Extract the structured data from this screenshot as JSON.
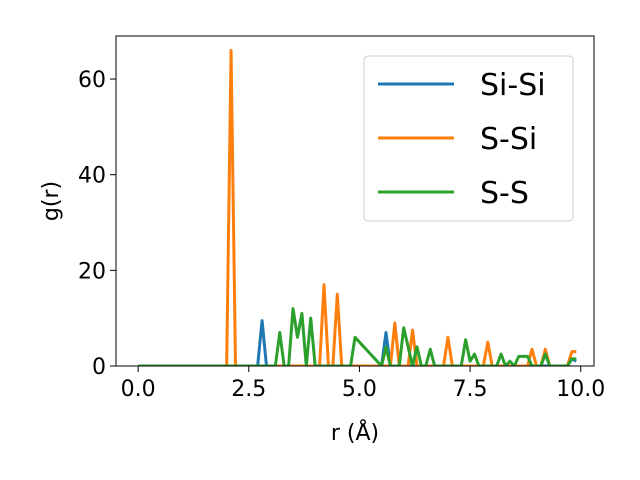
{
  "chart_data": {
    "type": "line",
    "title": "",
    "xlabel": "r (Å)",
    "ylabel": "g(r)",
    "xlim": [
      -0.5,
      10.3
    ],
    "ylim": [
      0,
      69
    ],
    "xticks": [
      0.0,
      2.5,
      5.0,
      7.5,
      10.0
    ],
    "xtick_labels": [
      "0.0",
      "2.5",
      "5.0",
      "7.5",
      "10.0"
    ],
    "yticks": [
      0,
      20,
      40,
      60
    ],
    "ytick_labels": [
      "0",
      "20",
      "40",
      "60"
    ],
    "grid": false,
    "legend_position": "top-right",
    "series": [
      {
        "name": "Si-Si",
        "color": "#1f77b4",
        "x": [
          0.0,
          2.7,
          2.8,
          2.9,
          5.5,
          5.6,
          5.7,
          9.7,
          9.8,
          9.9
        ],
        "y": [
          0,
          0,
          9.5,
          0,
          0,
          7,
          0,
          0,
          1.5,
          1
        ]
      },
      {
        "name": "S-Si",
        "color": "#ff7f0e",
        "x": [
          0.0,
          2.0,
          2.1,
          2.2,
          4.1,
          4.2,
          4.3,
          4.4,
          4.5,
          4.6,
          5.7,
          5.8,
          5.9,
          6.1,
          6.2,
          6.3,
          6.9,
          7.0,
          7.1,
          7.8,
          7.9,
          8.0,
          8.8,
          8.9,
          9.0,
          9.1,
          9.2,
          9.3,
          9.7,
          9.8,
          9.9
        ],
        "y": [
          0,
          0,
          66,
          0,
          0,
          17,
          0,
          0,
          15,
          0,
          0,
          9,
          0,
          0,
          7.5,
          0,
          0,
          6,
          0,
          0,
          5,
          0,
          0,
          3.5,
          0,
          0,
          3.5,
          0,
          0,
          3,
          3
        ]
      },
      {
        "name": "S-S",
        "color": "#2ca02c",
        "x": [
          0.0,
          3.1,
          3.2,
          3.3,
          3.4,
          3.5,
          3.6,
          3.7,
          3.8,
          3.9,
          4.0,
          4.7,
          4.8,
          4.9,
          5.5,
          5.6,
          5.7,
          5.9,
          6.0,
          6.1,
          6.2,
          6.3,
          6.4,
          6.5,
          6.6,
          6.7,
          7.2,
          7.3,
          7.4,
          7.5,
          7.6,
          7.7,
          8.0,
          8.1,
          8.2,
          8.3,
          8.4,
          8.5,
          8.6,
          8.7,
          8.8,
          8.9,
          9.0,
          9.1,
          9.2,
          9.3,
          9.7,
          9.8,
          9.9
        ],
        "y": [
          0,
          0,
          7,
          0,
          0,
          12,
          6,
          11,
          0,
          10,
          0,
          0,
          0,
          6,
          0,
          4,
          0,
          0,
          8,
          4,
          0,
          4,
          0,
          0,
          3.5,
          0,
          0,
          0,
          5.5,
          1,
          2.5,
          0,
          0,
          0,
          2.5,
          0,
          1,
          0,
          2,
          2,
          2,
          0,
          0,
          0,
          2.5,
          0,
          0,
          1.5,
          1.5
        ]
      }
    ]
  }
}
